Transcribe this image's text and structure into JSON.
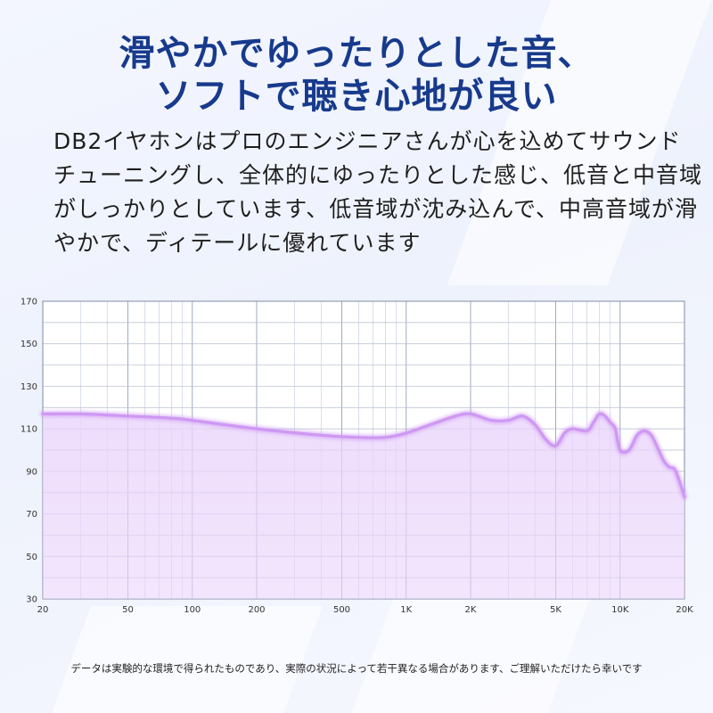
{
  "headline": {
    "line1": "滑やかでゆったりとした音、",
    "line2": "ソフトで聴き心地が良い"
  },
  "description": [
    "DB2イヤホンはプロのエンジニアさんが心を込めてサウンド",
    "チューニングし、全体的にゆったりとした感じ、低音と中音域",
    "がしっかりとしています、低音域が沈み込んで、中高音域が滑",
    "やかで、ディテールに優れています"
  ],
  "footnote": "データは実験的な環境で得られたものであり、実際の状況によって若干異なる場合があります、ご理解いただけたら幸いです",
  "colors": {
    "headline": "#173a8c",
    "curve": "#cf98f3",
    "fill": "#ead4fb"
  },
  "chart_data": {
    "type": "area",
    "x_scale": "log",
    "xlim": [
      20,
      20000
    ],
    "ylim": [
      30,
      170
    ],
    "x_ticks": [
      20,
      50,
      100,
      200,
      500,
      1000,
      2000,
      5000,
      10000,
      20000
    ],
    "x_tick_labels": [
      "20",
      "50",
      "100",
      "200",
      "500",
      "1K",
      "2K",
      "5K",
      "10K",
      "20K"
    ],
    "y_ticks": [
      30,
      50,
      70,
      90,
      110,
      130,
      150,
      170
    ],
    "y_tick_labels": [
      "30",
      "50",
      "70",
      "90",
      "110",
      "130",
      "150",
      "170"
    ],
    "grid": true,
    "x": [
      20,
      30,
      50,
      80,
      100,
      200,
      400,
      600,
      800,
      1000,
      1300,
      1700,
      2000,
      2500,
      3000,
      3500,
      4000,
      4500,
      5000,
      5500,
      6000,
      7000,
      7500,
      8000,
      8500,
      9000,
      9500,
      10000,
      11000,
      12000,
      13000,
      14000,
      15000,
      16000,
      17000,
      18000,
      19000,
      20000
    ],
    "y": [
      117,
      117,
      116,
      115,
      114,
      110,
      107,
      106,
      106,
      108,
      112,
      116,
      117,
      114,
      114,
      116,
      112,
      105,
      102,
      108,
      110,
      109,
      113,
      117,
      116,
      113,
      110,
      100,
      100,
      107,
      109,
      107,
      101,
      95,
      92,
      91,
      85,
      78
    ]
  }
}
